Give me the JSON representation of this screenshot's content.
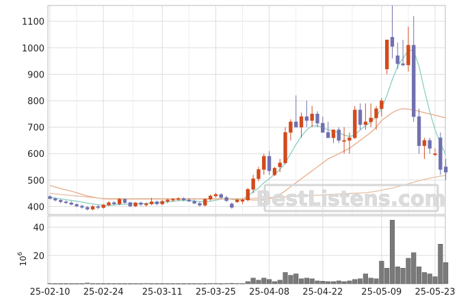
{
  "watermark": "BestListens.com",
  "colors": {
    "up": "#d24a1c",
    "down": "#7070b0",
    "volume": "#7a7a7a",
    "ma_short": "#8fd1c4",
    "ma_mid": "#e8b090",
    "ma_long": "#e6c3a8",
    "grid": "#dddddd"
  },
  "chart_data": {
    "type": "candlestick",
    "price_axis": {
      "ylim": [
        370,
        1160
      ],
      "ticks": [
        "400",
        "500",
        "600",
        "700",
        "800",
        "900",
        "1000",
        "1100"
      ]
    },
    "volume_axis": {
      "label": "10^6",
      "ylim": [
        0,
        48
      ],
      "ticks": [
        "20",
        "40"
      ]
    },
    "x_tick_labels": [
      "25-02-10",
      "25-02-24",
      "25-03-11",
      "25-03-25",
      "25-04-08",
      "25-04-22",
      "25-05-09",
      "25-05-23"
    ],
    "x_tick_index": [
      0,
      10,
      21,
      31,
      41,
      51,
      62,
      72
    ],
    "grid": true,
    "candles": [
      [
        438,
        443,
        426,
        430,
        0.2
      ],
      [
        430,
        434,
        420,
        424,
        0.1
      ],
      [
        424,
        428,
        413,
        418,
        0.1
      ],
      [
        418,
        423,
        410,
        415,
        0.1
      ],
      [
        414,
        420,
        405,
        408,
        0.1
      ],
      [
        408,
        413,
        398,
        402,
        0.1
      ],
      [
        402,
        407,
        392,
        397,
        0.1
      ],
      [
        397,
        402,
        385,
        390,
        0.5
      ],
      [
        390,
        405,
        386,
        400,
        0.1
      ],
      [
        400,
        406,
        390,
        396,
        0.1
      ],
      [
        396,
        410,
        392,
        406,
        0.1
      ],
      [
        406,
        420,
        401,
        415,
        0.1
      ],
      [
        415,
        420,
        405,
        410,
        0.1
      ],
      [
        410,
        432,
        405,
        428,
        0.1
      ],
      [
        428,
        430,
        410,
        415,
        0.1
      ],
      [
        415,
        418,
        398,
        402,
        0.1
      ],
      [
        402,
        418,
        398,
        414,
        0.1
      ],
      [
        414,
        418,
        402,
        408,
        0.1
      ],
      [
        406,
        416,
        400,
        410,
        0.2
      ],
      [
        410,
        433,
        405,
        418,
        0.1
      ],
      [
        418,
        422,
        405,
        410,
        0.1
      ],
      [
        410,
        425,
        405,
        420,
        0.1
      ],
      [
        420,
        430,
        412,
        425,
        0.1
      ],
      [
        425,
        432,
        418,
        428,
        0.1
      ],
      [
        428,
        435,
        422,
        430,
        0.1
      ],
      [
        430,
        435,
        420,
        425,
        0.1
      ],
      [
        425,
        432,
        418,
        420,
        0.1
      ],
      [
        420,
        426,
        410,
        412,
        0.1
      ],
      [
        412,
        418,
        400,
        405,
        0.1
      ],
      [
        405,
        430,
        400,
        428,
        0.1
      ],
      [
        428,
        445,
        422,
        440,
        0.2
      ],
      [
        440,
        452,
        434,
        446,
        0.2
      ],
      [
        446,
        450,
        430,
        434,
        0.1
      ],
      [
        434,
        440,
        418,
        422,
        0.2
      ],
      [
        410,
        415,
        392,
        397,
        0.3
      ],
      [
        418,
        430,
        414,
        425,
        0.2
      ],
      [
        420,
        430,
        410,
        425,
        0.2
      ],
      [
        425,
        470,
        420,
        465,
        1.5
      ],
      [
        465,
        520,
        450,
        505,
        4
      ],
      [
        505,
        550,
        495,
        540,
        2.5
      ],
      [
        540,
        600,
        520,
        590,
        4
      ],
      [
        590,
        610,
        520,
        535,
        3
      ],
      [
        520,
        550,
        515,
        545,
        1.5
      ],
      [
        550,
        580,
        530,
        565,
        2.5
      ],
      [
        565,
        700,
        560,
        680,
        8
      ],
      [
        680,
        730,
        650,
        720,
        6
      ],
      [
        720,
        820,
        700,
        700,
        7
      ],
      [
        700,
        755,
        660,
        740,
        3.5
      ],
      [
        740,
        800,
        700,
        725,
        4
      ],
      [
        725,
        780,
        700,
        750,
        3.5
      ],
      [
        750,
        760,
        700,
        715,
        2
      ],
      [
        715,
        740,
        680,
        680,
        1.8
      ],
      [
        680,
        720,
        660,
        660,
        1.5
      ],
      [
        660,
        690,
        640,
        690,
        1.5
      ],
      [
        690,
        700,
        640,
        650,
        2
      ],
      [
        650,
        700,
        600,
        650,
        1.5
      ],
      [
        650,
        680,
        600,
        660,
        2
      ],
      [
        660,
        780,
        655,
        765,
        3
      ],
      [
        765,
        790,
        690,
        710,
        3.5
      ],
      [
        710,
        790,
        690,
        720,
        7
      ],
      [
        720,
        790,
        700,
        735,
        4
      ],
      [
        735,
        780,
        690,
        770,
        3.5
      ],
      [
        770,
        810,
        740,
        800,
        16
      ],
      [
        920,
        1030,
        900,
        1030,
        11
      ],
      [
        1040,
        1160,
        960,
        1005,
        45
      ],
      [
        970,
        1020,
        920,
        940,
        12
      ],
      [
        940,
        1030,
        930,
        935,
        11
      ],
      [
        935,
        1080,
        910,
        1010,
        18
      ],
      [
        1010,
        1120,
        720,
        740,
        22
      ],
      [
        740,
        770,
        600,
        630,
        12
      ],
      [
        630,
        660,
        580,
        650,
        8
      ],
      [
        650,
        660,
        600,
        620,
        7
      ],
      [
        600,
        620,
        590,
        600,
        5
      ],
      [
        660,
        680,
        520,
        540,
        28
      ],
      [
        550,
        580,
        500,
        530,
        15
      ]
    ],
    "moving_averages": [
      {
        "values": [
          435,
          432,
          429,
          426,
          423,
          420,
          417,
          413,
          410,
          407,
          405,
          405,
          406,
          408,
          409,
          410,
          410,
          411,
          412,
          413,
          414,
          416,
          418,
          420,
          422,
          423,
          423,
          421,
          419,
          418,
          420,
          424,
          428,
          430,
          427,
          425,
          428,
          440,
          456,
          470,
          490,
          505,
          522,
          540,
          565,
          600,
          635,
          665,
          690,
          705,
          705,
          700,
          690,
          685,
          680,
          670,
          665,
          670,
          690,
          705,
          720,
          740,
          770,
          820,
          880,
          930,
          960,
          990,
          990,
          930,
          840,
          760,
          690,
          640,
          595
        ]
      },
      {
        "values": [
          480,
          474,
          468,
          463,
          458,
          452,
          446,
          440,
          436,
          432,
          429,
          428,
          428,
          428,
          428,
          428,
          428,
          428,
          428,
          428,
          428,
          428,
          428,
          428,
          428,
          428,
          428,
          428,
          428,
          428,
          428,
          428,
          428,
          428,
          428,
          428,
          427,
          426,
          425,
          425,
          425,
          430,
          435,
          445,
          460,
          475,
          490,
          505,
          520,
          535,
          550,
          565,
          580,
          590,
          600,
          610,
          620,
          635,
          650,
          665,
          680,
          700,
          725,
          740,
          755,
          765,
          770,
          768,
          765,
          760,
          755,
          750,
          745,
          740,
          735
        ]
      },
      {
        "values": [
          450,
          448,
          446,
          444,
          442,
          440,
          438,
          436,
          434,
          432,
          431,
          430,
          430,
          430,
          430,
          430,
          430,
          430,
          430,
          430,
          430,
          430,
          430,
          430,
          430,
          430,
          430,
          430,
          430,
          430,
          430,
          430,
          430,
          430,
          430,
          430,
          430,
          430,
          431,
          432,
          433,
          434,
          435,
          436,
          437,
          438,
          439,
          440,
          441,
          442,
          443,
          444,
          445,
          446,
          447,
          448,
          449,
          450,
          451,
          452,
          455,
          458,
          462,
          466,
          470,
          475,
          480,
          486,
          492,
          498,
          503,
          507,
          511,
          515,
          518
        ]
      }
    ]
  }
}
